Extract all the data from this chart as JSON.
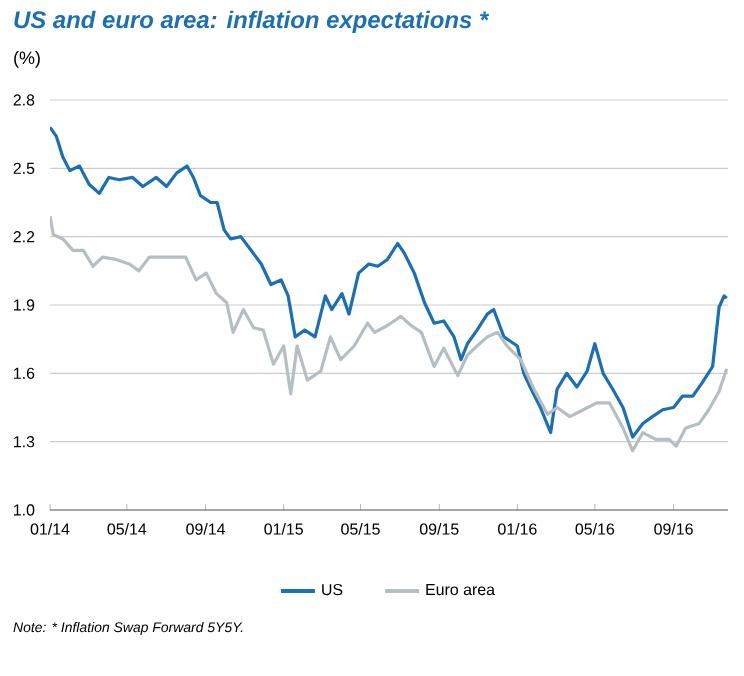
{
  "chart_data": {
    "type": "line",
    "title": "US and euro area: inflation expectations *",
    "ylabel": "(%)",
    "xlim": [
      "2014-01-01",
      "2016-11-25"
    ],
    "ylim": [
      1.0,
      2.8
    ],
    "yticks": [
      {
        "value": 1,
        "label": "1.0"
      },
      1.3,
      1.6,
      1.9,
      2.2,
      2.5,
      2.8
    ],
    "xticks": [
      {
        "value": "2014-01",
        "label": "01/14"
      },
      {
        "value": "2014-05",
        "label": "05/14"
      },
      {
        "value": "2014-09",
        "label": "09/14"
      },
      {
        "value": "2015-01",
        "label": "01/15"
      },
      {
        "value": "2015-05",
        "label": "05/15"
      },
      {
        "value": "2015-09",
        "label": "09/15"
      },
      {
        "value": "2016-01",
        "label": "01/16"
      },
      {
        "value": "2016-05",
        "label": "05/16"
      },
      {
        "value": "2016-09",
        "label": "09/16"
      }
    ],
    "grid": "y",
    "legend": "bottom",
    "series": [
      {
        "name": "US",
        "color": "#1a6fb5",
        "x": [
          "2014-01-01",
          "2014-01-11",
          "2014-01-21",
          "2014-02-01",
          "2014-02-16",
          "2014-03-03",
          "2014-03-19",
          "2014-04-03",
          "2014-04-19",
          "2014-05-10",
          "2014-05-26",
          "2014-06-16",
          "2014-07-02",
          "2014-07-18",
          "2014-08-03",
          "2014-08-13",
          "2014-08-24",
          "2014-09-09",
          "2014-09-19",
          "2014-09-30",
          "2014-10-10",
          "2014-10-26",
          "2014-11-11",
          "2014-11-27",
          "2014-12-12",
          "2014-12-28",
          "2015-01-08",
          "2015-01-19",
          "2015-02-03",
          "2015-02-19",
          "2015-03-07",
          "2015-03-17",
          "2015-04-02",
          "2015-04-13",
          "2015-04-28",
          "2015-05-14",
          "2015-05-28",
          "2015-06-12",
          "2015-06-28",
          "2015-07-08",
          "2015-07-24",
          "2015-08-09",
          "2015-08-24",
          "2015-09-08",
          "2015-09-24",
          "2015-10-05",
          "2015-10-15",
          "2015-10-30",
          "2015-11-15",
          "2015-11-25",
          "2015-12-11",
          "2016-01-01",
          "2016-01-11",
          "2016-01-21",
          "2016-02-06",
          "2016-02-22",
          "2016-03-03",
          "2016-03-18",
          "2016-04-03",
          "2016-04-19",
          "2016-05-01",
          "2016-05-14",
          "2016-05-29",
          "2016-06-14",
          "2016-06-29",
          "2016-07-15",
          "2016-07-30",
          "2016-08-15",
          "2016-09-01",
          "2016-09-15",
          "2016-10-01",
          "2016-10-16",
          "2016-11-01",
          "2016-11-11",
          "2016-11-19",
          "2016-11-23"
        ],
        "values": [
          2.68,
          2.64,
          2.55,
          2.49,
          2.51,
          2.43,
          2.39,
          2.46,
          2.45,
          2.46,
          2.42,
          2.46,
          2.42,
          2.48,
          2.51,
          2.46,
          2.38,
          2.35,
          2.35,
          2.23,
          2.19,
          2.2,
          2.14,
          2.08,
          1.99,
          2.01,
          1.94,
          1.76,
          1.79,
          1.76,
          1.94,
          1.88,
          1.95,
          1.86,
          2.04,
          2.08,
          2.07,
          2.1,
          2.17,
          2.13,
          2.04,
          1.91,
          1.82,
          1.83,
          1.76,
          1.66,
          1.73,
          1.79,
          1.86,
          1.88,
          1.76,
          1.72,
          1.6,
          1.54,
          1.45,
          1.34,
          1.53,
          1.6,
          1.54,
          1.61,
          1.73,
          1.6,
          1.53,
          1.45,
          1.32,
          1.38,
          1.41,
          1.44,
          1.45,
          1.5,
          1.5,
          1.56,
          1.63,
          1.89,
          1.94,
          1.93
        ]
      },
      {
        "name": "Euro area",
        "color": "#b4bec3",
        "x": [
          "2014-01-01",
          "2014-01-06",
          "2014-01-21",
          "2014-02-06",
          "2014-02-22",
          "2014-03-09",
          "2014-03-24",
          "2014-04-14",
          "2014-05-05",
          "2014-05-20",
          "2014-06-05",
          "2014-06-26",
          "2014-07-17",
          "2014-08-01",
          "2014-08-17",
          "2014-09-02",
          "2014-09-18",
          "2014-10-04",
          "2014-10-14",
          "2014-10-30",
          "2014-11-15",
          "2014-11-30",
          "2014-12-16",
          "2015-01-01",
          "2015-01-12",
          "2015-01-22",
          "2015-02-07",
          "2015-02-28",
          "2015-03-15",
          "2015-03-31",
          "2015-04-21",
          "2015-05-12",
          "2015-05-23",
          "2015-06-12",
          "2015-07-03",
          "2015-07-19",
          "2015-08-04",
          "2015-08-24",
          "2015-09-08",
          "2015-09-30",
          "2015-10-15",
          "2015-10-30",
          "2015-11-15",
          "2015-12-01",
          "2015-12-16",
          "2016-01-06",
          "2016-01-27",
          "2016-02-17",
          "2016-03-03",
          "2016-03-23",
          "2016-04-13",
          "2016-05-04",
          "2016-05-24",
          "2016-06-14",
          "2016-06-29",
          "2016-07-15",
          "2016-08-04",
          "2016-08-25",
          "2016-09-05",
          "2016-09-20",
          "2016-10-11",
          "2016-10-26",
          "2016-11-11",
          "2016-11-23"
        ],
        "values": [
          2.29,
          2.21,
          2.19,
          2.14,
          2.14,
          2.07,
          2.11,
          2.1,
          2.08,
          2.05,
          2.11,
          2.11,
          2.11,
          2.11,
          2.01,
          2.04,
          1.95,
          1.91,
          1.78,
          1.88,
          1.8,
          1.79,
          1.64,
          1.72,
          1.51,
          1.72,
          1.57,
          1.61,
          1.76,
          1.66,
          1.72,
          1.82,
          1.78,
          1.81,
          1.85,
          1.81,
          1.78,
          1.63,
          1.71,
          1.59,
          1.68,
          1.72,
          1.76,
          1.78,
          1.72,
          1.66,
          1.53,
          1.42,
          1.45,
          1.41,
          1.44,
          1.47,
          1.47,
          1.36,
          1.26,
          1.34,
          1.31,
          1.31,
          1.28,
          1.36,
          1.38,
          1.44,
          1.52,
          1.62
        ]
      }
    ],
    "annotations": [
      "Note: * Inflation Swap Forward 5Y5Y."
    ]
  }
}
